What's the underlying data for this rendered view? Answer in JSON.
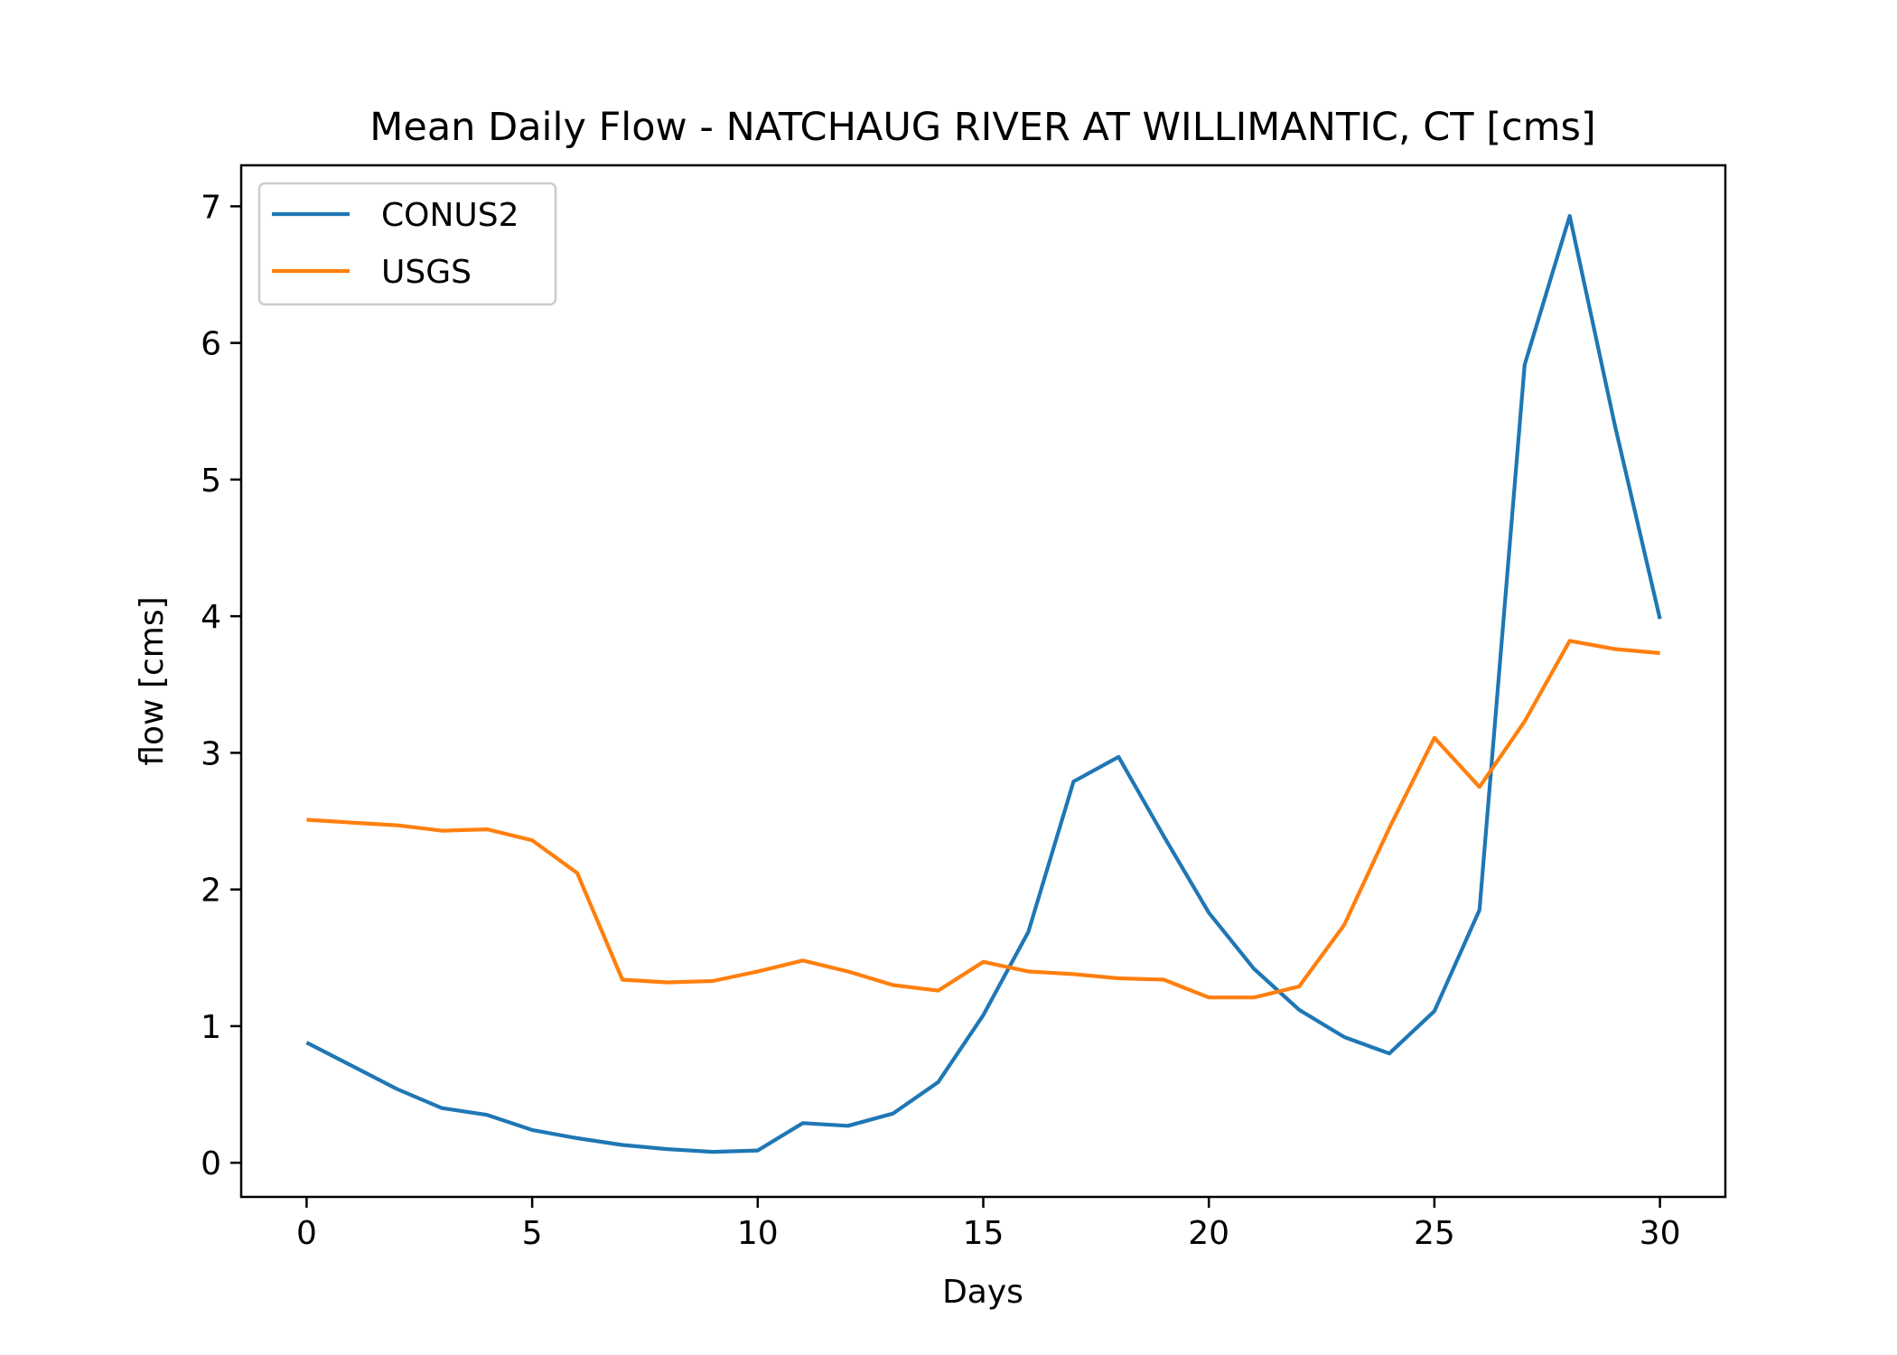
{
  "chart_data": {
    "type": "line",
    "title": "Mean Daily Flow - NATCHAUG RIVER AT WILLIMANTIC, CT [cms]",
    "xlabel": "Days",
    "ylabel": "flow [cms]",
    "xlim": [
      -1.45,
      31.45
    ],
    "ylim": [
      -0.25,
      7.3
    ],
    "xticks": [
      0,
      5,
      10,
      15,
      20,
      25,
      30
    ],
    "yticks": [
      0,
      1,
      2,
      3,
      4,
      5,
      6,
      7
    ],
    "grid": false,
    "legend_position": "top-left",
    "x": [
      0,
      1,
      2,
      3,
      4,
      5,
      6,
      7,
      8,
      9,
      10,
      11,
      12,
      13,
      14,
      15,
      16,
      17,
      18,
      19,
      20,
      21,
      22,
      23,
      24,
      25,
      26,
      27,
      28,
      29,
      30
    ],
    "series": [
      {
        "name": "CONUS2",
        "color": "#1f77b4",
        "values": [
          0.88,
          0.71,
          0.54,
          0.4,
          0.35,
          0.24,
          0.18,
          0.13,
          0.1,
          0.08,
          0.09,
          0.29,
          0.27,
          0.36,
          0.59,
          1.08,
          1.69,
          2.79,
          2.97,
          2.39,
          1.83,
          1.42,
          1.12,
          0.92,
          0.8,
          1.11,
          1.85,
          5.84,
          6.93,
          5.4,
          3.98
        ]
      },
      {
        "name": "USGS",
        "color": "#ff7f0e",
        "values": [
          2.51,
          2.49,
          2.47,
          2.43,
          2.44,
          2.36,
          2.12,
          1.34,
          1.32,
          1.33,
          1.4,
          1.48,
          1.4,
          1.3,
          1.26,
          1.47,
          1.4,
          1.38,
          1.35,
          1.34,
          1.21,
          1.21,
          1.29,
          1.74,
          2.45,
          3.11,
          2.75,
          3.23,
          3.82,
          3.76,
          3.73
        ]
      }
    ]
  }
}
